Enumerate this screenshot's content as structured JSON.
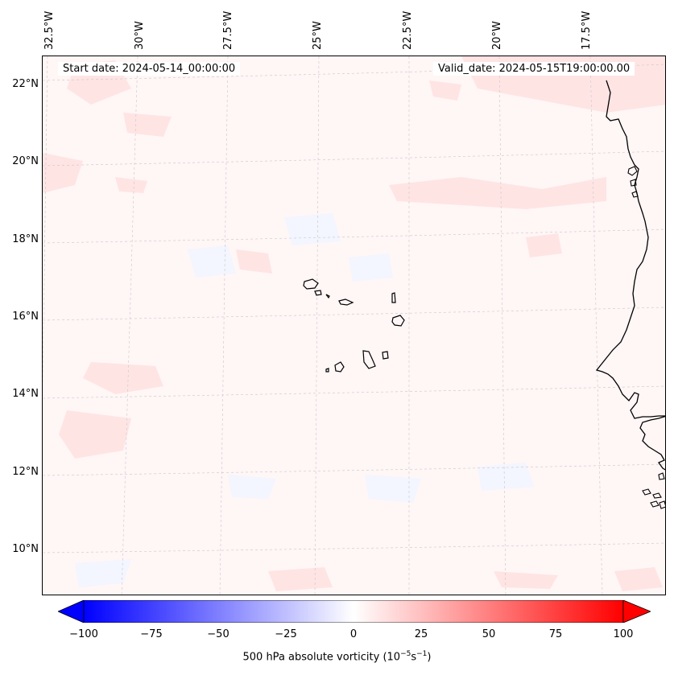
{
  "map": {
    "start_date": "Start date: 2024-05-14_00:00:00",
    "valid_date": "Valid_date: 2024-05-15T19:00:00.00",
    "lon_labels": [
      "32.5°W",
      "30°W",
      "27.5°W",
      "25°W",
      "22.5°W",
      "20°W",
      "17.5°W"
    ],
    "lat_labels": [
      "22°N",
      "20°N",
      "18°N",
      "16°N",
      "14°N",
      "12°N",
      "10°N"
    ],
    "colors": {
      "background": "#fff6f6",
      "coast": "#000000",
      "grid": "#c8c8c8"
    }
  },
  "colorbar": {
    "ticks": [
      "−100",
      "−75",
      "−50",
      "−25",
      "0",
      "25",
      "50",
      "75",
      "100"
    ],
    "label": "500 hPa absolute vorticity (10",
    "label_exp1": "−5",
    "label_mid": "s",
    "label_exp2": "−1",
    "label_end": ")",
    "colors": {
      "min": "#0000ff",
      "mid": "#ffffff",
      "max": "#ff0000"
    }
  }
}
